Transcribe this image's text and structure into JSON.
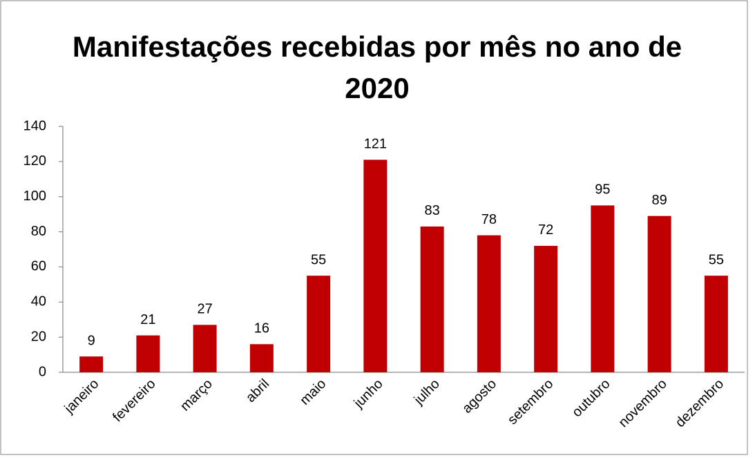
{
  "chart_data": {
    "type": "bar",
    "title": "Manifestações recebidas por mês no ano de 2020",
    "categories": [
      "janeiro",
      "fevereiro",
      "março",
      "abril",
      "maio",
      "junho",
      "julho",
      "agosto",
      "setembro",
      "outubro",
      "novembro",
      "dezembro"
    ],
    "values": [
      9,
      21,
      27,
      16,
      55,
      121,
      83,
      78,
      72,
      95,
      89,
      55
    ],
    "color": "#c00000",
    "ylim": [
      0,
      140
    ],
    "yticks": [
      0,
      20,
      40,
      60,
      80,
      100,
      120,
      140
    ],
    "grid": false,
    "data_labels": true
  }
}
